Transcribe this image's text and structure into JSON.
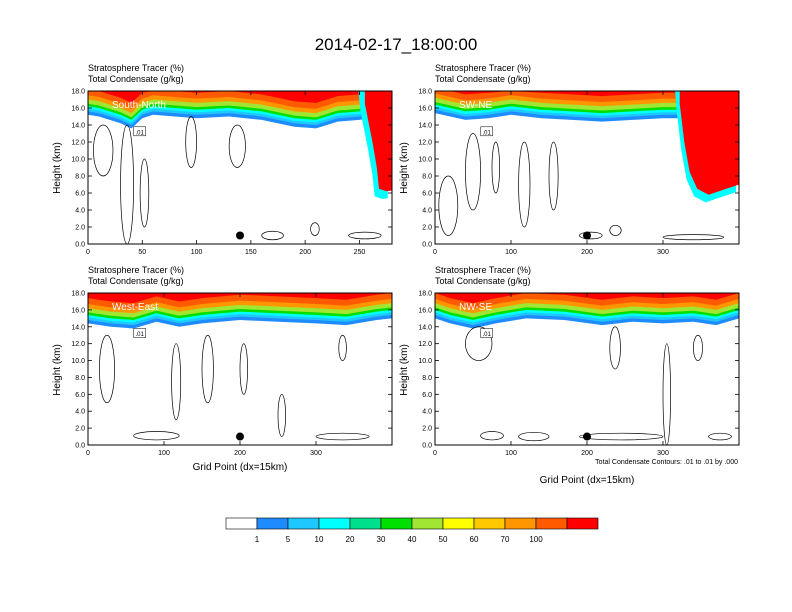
{
  "title": "2014-02-17_18:00:00",
  "xlabel": "Grid Point (dx=15km)",
  "ylabel": "Height (km)",
  "panel_title_1": "Stratosphere Tracer   (%)",
  "panel_title_2": "Total Condensate   (g/kg)",
  "contour_note": "Total Condensate Contours: .01 to .01 by .000",
  "contour_label": ".01",
  "colors": {
    "fill_levels": [
      "#ffffff",
      "#1e8cff",
      "#1ec8ff",
      "#00ffff",
      "#00e08c",
      "#00e000",
      "#a0e632",
      "#ffff00",
      "#ffc800",
      "#ff9600",
      "#ff5a00",
      "#ff0000"
    ]
  },
  "colorbar": {
    "labels": [
      "1",
      "5",
      "10",
      "20",
      "30",
      "40",
      "50",
      "60",
      "70",
      "100"
    ]
  },
  "chart_data": [
    {
      "type": "heatmap",
      "name_label": "South-North",
      "xlim": [
        0,
        280
      ],
      "ylim": [
        0,
        18
      ],
      "xticks": [
        0,
        50,
        100,
        150,
        200,
        250
      ],
      "yticks": [
        0.0,
        2.0,
        4.0,
        6.0,
        8.0,
        10.0,
        12.0,
        14.0,
        16.0,
        18.0
      ],
      "ytick_labels": [
        "0.0",
        "2.0",
        "4.0",
        "6.0",
        "8.0",
        "10.0",
        "12.0",
        "14.0",
        "16.0",
        "18.0"
      ],
      "tropopause": [
        [
          0,
          15.2
        ],
        [
          10,
          15.0
        ],
        [
          20,
          14.6
        ],
        [
          30,
          14.2
        ],
        [
          40,
          13.6
        ],
        [
          50,
          14.8
        ],
        [
          60,
          15.2
        ],
        [
          80,
          15.0
        ],
        [
          100,
          14.8
        ],
        [
          130,
          15.0
        ],
        [
          160,
          14.6
        ],
        [
          190,
          13.8
        ],
        [
          210,
          13.6
        ],
        [
          230,
          14.4
        ],
        [
          250,
          14.6
        ],
        [
          270,
          15.0
        ],
        [
          280,
          15.2
        ]
      ],
      "intrusion": [
        [
          255,
          16.5
        ],
        [
          262,
          12
        ],
        [
          266,
          9
        ],
        [
          268,
          6.5
        ],
        [
          275,
          6.2
        ],
        [
          280,
          6.3
        ]
      ],
      "marker": [
        140,
        1.0
      ]
    },
    {
      "type": "heatmap",
      "name_label": "SW-NE",
      "xlim": [
        0,
        400
      ],
      "ylim": [
        0,
        18
      ],
      "xticks": [
        0,
        100,
        200,
        300
      ],
      "yticks": [
        0.0,
        2.0,
        4.0,
        6.0,
        8.0,
        10.0,
        12.0,
        14.0,
        16.0,
        18.0
      ],
      "ytick_labels": [
        "0.0",
        "2.0",
        "4.0",
        "6.0",
        "8.0",
        "10.0",
        "12.0",
        "14.0",
        "16.0",
        "18.0"
      ],
      "tropopause": [
        [
          0,
          15.4
        ],
        [
          20,
          15.0
        ],
        [
          40,
          14.6
        ],
        [
          70,
          14.8
        ],
        [
          100,
          15.2
        ],
        [
          140,
          14.8
        ],
        [
          180,
          14.6
        ],
        [
          220,
          14.4
        ],
        [
          260,
          14.6
        ],
        [
          300,
          14.8
        ],
        [
          320,
          14.8
        ],
        [
          400,
          15.0
        ]
      ],
      "intrusion": [
        [
          322,
          16.5
        ],
        [
          328,
          12
        ],
        [
          335,
          8.5
        ],
        [
          345,
          6.5
        ],
        [
          360,
          5.8
        ],
        [
          380,
          6.4
        ],
        [
          400,
          7.0
        ]
      ],
      "marker": [
        200,
        1.0
      ]
    },
    {
      "type": "heatmap",
      "name_label": "West-East",
      "xlim": [
        0,
        400
      ],
      "ylim": [
        0,
        18
      ],
      "xticks": [
        0,
        100,
        200,
        300
      ],
      "yticks": [
        0.0,
        2.0,
        4.0,
        6.0,
        8.0,
        10.0,
        12.0,
        14.0,
        16.0,
        18.0
      ],
      "ytick_labels": [
        "0.0",
        "2.0",
        "4.0",
        "6.0",
        "8.0",
        "10.0",
        "12.0",
        "14.0",
        "16.0",
        "18.0"
      ],
      "tropopause": [
        [
          0,
          14.4
        ],
        [
          30,
          14.0
        ],
        [
          60,
          13.8
        ],
        [
          90,
          14.6
        ],
        [
          120,
          14.0
        ],
        [
          150,
          14.4
        ],
        [
          200,
          14.8
        ],
        [
          250,
          14.6
        ],
        [
          300,
          14.4
        ],
        [
          340,
          14.2
        ],
        [
          380,
          14.8
        ],
        [
          400,
          15.0
        ]
      ],
      "intrusion": [],
      "marker": [
        200,
        1.0
      ]
    },
    {
      "type": "heatmap",
      "name_label": "NW-SE",
      "xlim": [
        0,
        400
      ],
      "ylim": [
        0,
        18
      ],
      "xticks": [
        0,
        100,
        200,
        300
      ],
      "yticks": [
        0.0,
        2.0,
        4.0,
        6.0,
        8.0,
        10.0,
        12.0,
        14.0,
        16.0,
        18.0
      ],
      "ytick_labels": [
        "0.0",
        "2.0",
        "4.0",
        "6.0",
        "8.0",
        "10.0",
        "12.0",
        "14.0",
        "16.0",
        "18.0"
      ],
      "tropopause": [
        [
          0,
          15.0
        ],
        [
          20,
          14.4
        ],
        [
          50,
          13.8
        ],
        [
          80,
          14.4
        ],
        [
          120,
          15.0
        ],
        [
          170,
          14.8
        ],
        [
          220,
          14.2
        ],
        [
          260,
          14.6
        ],
        [
          300,
          14.4
        ],
        [
          340,
          14.6
        ],
        [
          370,
          14.2
        ],
        [
          400,
          15.0
        ]
      ],
      "intrusion": [],
      "marker": [
        200,
        1.0
      ]
    }
  ]
}
